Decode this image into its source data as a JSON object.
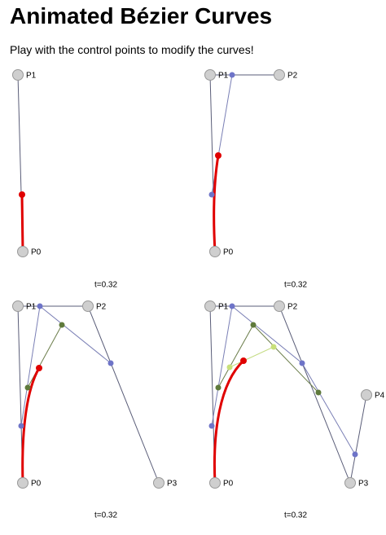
{
  "header": {
    "title": "Animated Bézier Curves",
    "subtitle": "Play with the control points to modify the curves!"
  },
  "panels": [
    {
      "points": [
        "P0",
        "P1"
      ],
      "t_label": "t=0.32"
    },
    {
      "points": [
        "P0",
        "P1",
        "P2"
      ],
      "t_label": "t=0.32"
    },
    {
      "points": [
        "P0",
        "P1",
        "P2",
        "P3"
      ],
      "t_label": "t=0.32"
    },
    {
      "points": [
        "P0",
        "P1",
        "P2",
        "P3",
        "P4"
      ],
      "t_label": "t=0.32"
    }
  ]
}
